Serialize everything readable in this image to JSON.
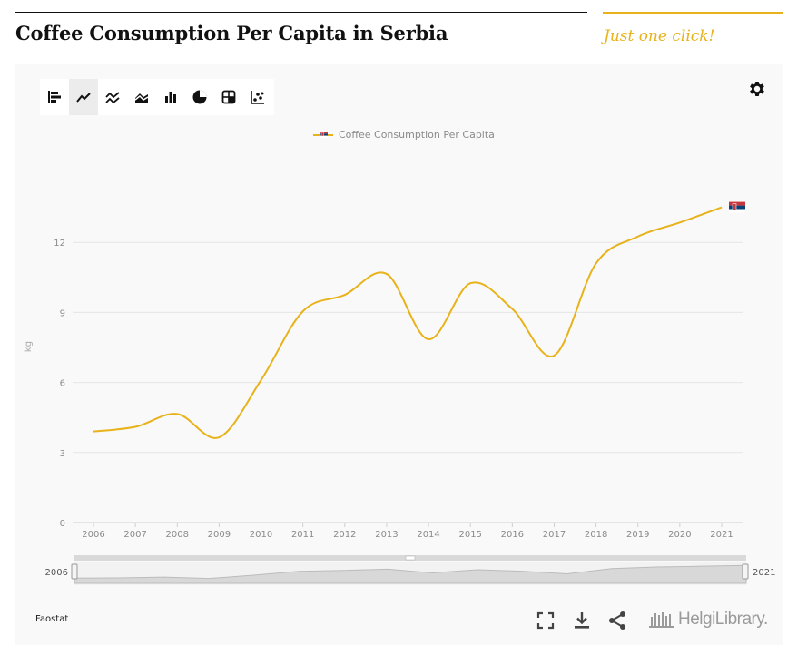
{
  "header": {
    "title": "Coffee Consumption Per Capita in Serbia",
    "tagline": "Just one click!"
  },
  "toolbar": {
    "chart_types": [
      {
        "name": "bar-horizontal-icon",
        "active": false
      },
      {
        "name": "line-chart-icon",
        "active": true
      },
      {
        "name": "multi-line-icon",
        "active": false
      },
      {
        "name": "area-chart-icon",
        "active": false
      },
      {
        "name": "column-chart-icon",
        "active": false
      },
      {
        "name": "pie-chart-icon",
        "active": false
      },
      {
        "name": "table-icon",
        "active": false
      },
      {
        "name": "scatter-chart-icon",
        "active": false
      }
    ]
  },
  "colors": {
    "series": "#e8b21a",
    "grid": "#e6e6e6",
    "axis_text": "#8a8a8a"
  },
  "chart_data": {
    "type": "line",
    "title": "",
    "xlabel": "",
    "ylabel": "kg",
    "ylim": [
      0,
      15
    ],
    "yticks": [
      0,
      3,
      6,
      9,
      12
    ],
    "x": [
      "2006",
      "2007",
      "2008",
      "2009",
      "2010",
      "2011",
      "2012",
      "2013",
      "2014",
      "2015",
      "2016",
      "2017",
      "2018",
      "2019",
      "2020",
      "2021"
    ],
    "series": [
      {
        "name": "Coffee Consumption Per Capita",
        "values": [
          3.9,
          4.1,
          4.65,
          3.65,
          6.1,
          9.05,
          9.75,
          10.65,
          7.85,
          10.25,
          9.15,
          7.15,
          11.1,
          12.25,
          12.85,
          13.5
        ]
      }
    ],
    "grid": true,
    "legend": "top-center",
    "navigator": {
      "start_label": "2006",
      "end_label": "2021"
    }
  },
  "footer": {
    "source": "Faostat",
    "brand": "HelgiLibrary."
  }
}
